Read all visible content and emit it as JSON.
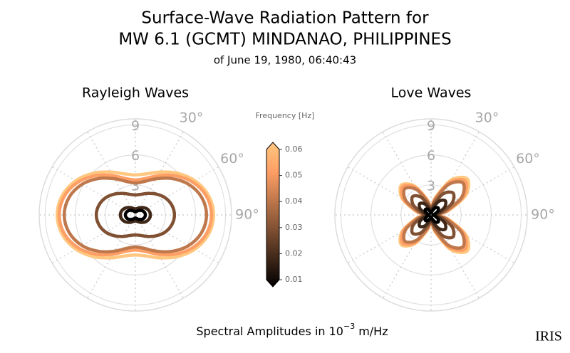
{
  "figure": {
    "title": "Surface-Wave Radiation Pattern for",
    "title2": "MW 6.1 (GCMT) MINDANAO, PHILIPPINES",
    "subtitle": "of June 19, 1980, 06:40:43",
    "x_label": {
      "text": "Spectral Amplitudes in 10",
      "exponent": "−3",
      "unit": "m/Hz"
    },
    "logo": "IRIS",
    "colorbar": {
      "label": "Frequency [Hz]",
      "lim": [
        0.01,
        0.06
      ],
      "ticks": [
        0.01,
        0.02,
        0.03,
        0.04,
        0.05,
        0.06
      ]
    }
  },
  "chart_data": [
    {
      "type": "polar",
      "title": "Rayleigh Waves",
      "rlim": [
        0,
        9.6
      ],
      "rticks": [
        3,
        6,
        9
      ],
      "thetagrid": [
        0,
        30,
        60,
        90,
        120,
        150,
        180,
        210,
        240,
        270,
        300,
        330
      ],
      "theta_labels": [
        {
          "value": 30,
          "label": "30°"
        },
        {
          "value": 60,
          "label": "60°"
        },
        {
          "value": 90,
          "label": "90°"
        }
      ],
      "theta": [
        0,
        15,
        30,
        45,
        60,
        75,
        90,
        105,
        120,
        135,
        150,
        165,
        180,
        195,
        210,
        225,
        240,
        255,
        270,
        285,
        300,
        315,
        330,
        345
      ],
      "series": [
        {
          "color": "#ffc77f",
          "values": [
            4.0,
            4.25,
            4.95,
            5.9,
            6.85,
            7.55,
            7.8,
            7.55,
            6.85,
            5.9,
            4.95,
            4.25,
            4.0,
            4.25,
            4.95,
            5.9,
            6.85,
            7.55,
            7.8,
            7.55,
            6.85,
            5.9,
            4.95,
            4.25
          ]
        },
        {
          "color": "#ff9f65",
          "values": [
            3.5,
            3.77,
            4.53,
            5.55,
            6.58,
            7.33,
            7.6,
            7.33,
            6.58,
            5.55,
            4.53,
            3.77,
            3.5,
            3.77,
            4.53,
            5.55,
            6.58,
            7.33,
            7.6,
            7.33,
            6.58,
            5.55,
            4.53,
            3.77
          ]
        },
        {
          "color": "#bf784c",
          "values": [
            3.2,
            3.46,
            4.18,
            5.15,
            6.13,
            6.84,
            7.1,
            6.84,
            6.13,
            5.15,
            4.18,
            3.46,
            3.2,
            3.46,
            4.18,
            5.15,
            6.13,
            6.84,
            7.1,
            6.84,
            6.13,
            5.15,
            4.18,
            3.46
          ]
        },
        {
          "color": "#805033",
          "values": [
            2.0,
            2.13,
            2.48,
            2.95,
            3.43,
            3.77,
            3.9,
            3.77,
            3.43,
            2.95,
            2.48,
            2.13,
            2.0,
            2.13,
            2.48,
            2.95,
            3.43,
            3.77,
            3.9,
            3.77,
            3.43,
            2.95,
            2.48,
            2.13
          ]
        },
        {
          "color": "#402819",
          "values": [
            0.6,
            0.66,
            0.83,
            1.05,
            1.28,
            1.44,
            1.5,
            1.44,
            1.28,
            1.05,
            0.83,
            0.66,
            0.6,
            0.66,
            0.83,
            1.05,
            1.28,
            1.44,
            1.5,
            1.44,
            1.28,
            1.05,
            0.83,
            0.66
          ]
        },
        {
          "color": "#000000",
          "values": [
            0.3,
            0.35,
            0.48,
            0.65,
            0.83,
            0.95,
            1.0,
            0.95,
            0.83,
            0.65,
            0.48,
            0.35,
            0.3,
            0.35,
            0.48,
            0.65,
            0.83,
            0.95,
            1.0,
            0.95,
            0.83,
            0.65,
            0.48,
            0.35
          ]
        }
      ]
    },
    {
      "type": "polar",
      "title": "Love Waves",
      "rlim": [
        0,
        9.6
      ],
      "rticks": [
        3,
        6,
        9
      ],
      "thetagrid": [
        0,
        30,
        60,
        90,
        120,
        150,
        180,
        210,
        240,
        270,
        300,
        330
      ],
      "theta_labels": [
        {
          "value": 30,
          "label": "30°"
        },
        {
          "value": 60,
          "label": "60°"
        },
        {
          "value": 90,
          "label": "90°"
        }
      ],
      "theta": [
        0,
        15,
        30,
        45,
        60,
        75,
        90,
        105,
        120,
        135,
        150,
        165,
        180,
        195,
        210,
        225,
        240,
        255,
        270,
        285,
        300,
        315,
        330,
        345
      ],
      "series": [
        {
          "color": "#ffc77f",
          "values": [
            0.8,
            1.88,
            4.03,
            5.1,
            4.03,
            1.88,
            0.8,
            1.88,
            4.03,
            5.1,
            4.03,
            1.88,
            0.8,
            1.65,
            3.35,
            4.2,
            3.35,
            1.65,
            0.8,
            1.65,
            3.35,
            4.2,
            3.35,
            1.65
          ]
        },
        {
          "color": "#ff9f65",
          "values": [
            0.7,
            1.73,
            3.78,
            4.8,
            3.78,
            1.73,
            0.7,
            1.73,
            3.78,
            4.8,
            3.78,
            1.73,
            0.7,
            1.53,
            3.18,
            4.0,
            3.18,
            1.53,
            0.7,
            1.53,
            3.18,
            4.0,
            3.18,
            1.53
          ]
        },
        {
          "color": "#bf784c",
          "values": [
            0.6,
            1.58,
            3.53,
            4.5,
            3.53,
            1.58,
            0.6,
            1.58,
            3.53,
            4.5,
            3.53,
            1.58,
            0.6,
            1.38,
            2.93,
            3.7,
            2.93,
            1.38,
            0.6,
            1.38,
            2.93,
            3.7,
            2.93,
            1.38
          ]
        },
        {
          "color": "#805033",
          "values": [
            0.5,
            1.15,
            2.45,
            3.1,
            2.45,
            1.15,
            0.5,
            1.15,
            2.45,
            3.1,
            2.45,
            1.15,
            0.5,
            1.03,
            2.08,
            2.6,
            2.08,
            1.03,
            0.5,
            1.03,
            2.08,
            2.6,
            2.08,
            1.03
          ]
        },
        {
          "color": "#402819",
          "values": [
            0.3,
            0.73,
            1.58,
            2.0,
            1.58,
            0.73,
            0.3,
            0.73,
            1.58,
            2.0,
            1.58,
            0.73,
            0.3,
            0.63,
            1.28,
            1.6,
            1.28,
            0.63,
            0.3,
            0.63,
            1.28,
            1.6,
            1.28,
            0.63
          ]
        },
        {
          "color": "#000000",
          "values": [
            0.2,
            0.4,
            0.8,
            1.0,
            0.8,
            0.4,
            0.2,
            0.4,
            0.8,
            1.0,
            0.8,
            0.4,
            0.2,
            0.35,
            0.65,
            0.8,
            0.65,
            0.35,
            0.2,
            0.35,
            0.65,
            0.8,
            0.65,
            0.35
          ]
        }
      ]
    }
  ]
}
